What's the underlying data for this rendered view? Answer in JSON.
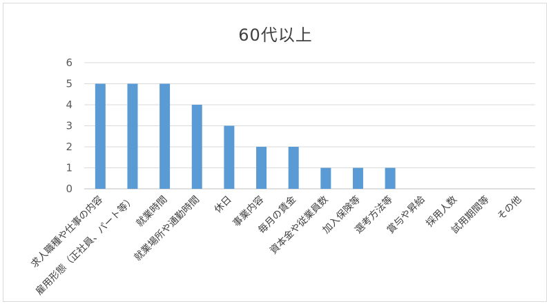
{
  "chart_data": {
    "type": "bar",
    "title": "60代以上",
    "categories": [
      "求人職種や仕事の内容",
      "雇用形態（正社員、パート等）",
      "就業時間",
      "就業場所や通勤時間",
      "休日",
      "事業内容",
      "毎月の賃金",
      "資本金や従業員数",
      "加入保険等",
      "選考方法等",
      "賞与や昇給",
      "採用人数",
      "試用期間等",
      "その他"
    ],
    "values": [
      5,
      5,
      5,
      4,
      3,
      2,
      2,
      1,
      1,
      1,
      0,
      0,
      0,
      0
    ],
    "ylim": [
      0,
      6
    ],
    "yticks": [
      "0",
      "1",
      "2",
      "3",
      "4",
      "5",
      "6"
    ],
    "grid": true,
    "legend": "none",
    "bar_color": "#5b9bd5"
  }
}
